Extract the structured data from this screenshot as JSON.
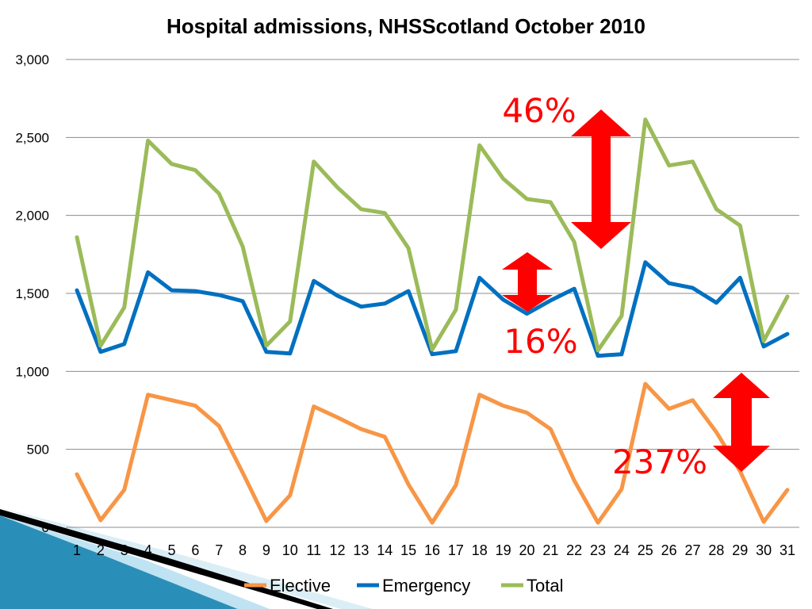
{
  "chart_data": {
    "type": "line",
    "title": "Hospital admissions, NHSScotland October 2010",
    "xlabel": "",
    "ylabel": "",
    "ylim": [
      0,
      3000
    ],
    "yticks": [
      0,
      500,
      1000,
      1500,
      2000,
      2500,
      3000
    ],
    "ytick_labels": [
      "0",
      "500",
      "1,000",
      "1,500",
      "2,000",
      "2,500",
      "3,000"
    ],
    "grid": true,
    "legend_position": "bottom",
    "categories": [
      "1",
      "2",
      "3",
      "4",
      "5",
      "6",
      "7",
      "8",
      "9",
      "10",
      "11",
      "12",
      "13",
      "14",
      "15",
      "16",
      "17",
      "18",
      "19",
      "20",
      "21",
      "22",
      "23",
      "24",
      "25",
      "26",
      "27",
      "28",
      "29",
      "30",
      "31"
    ],
    "series": [
      {
        "name": "Elective",
        "color": "#f79646",
        "values": [
          340,
          45,
          240,
          850,
          815,
          780,
          650,
          350,
          40,
          205,
          775,
          705,
          630,
          580,
          275,
          30,
          270,
          850,
          780,
          735,
          630,
          300,
          30,
          245,
          920,
          760,
          815,
          610,
          360,
          35,
          240
        ]
      },
      {
        "name": "Emergency",
        "color": "#0070c0",
        "values": [
          1520,
          1125,
          1175,
          1635,
          1520,
          1515,
          1490,
          1450,
          1125,
          1115,
          1580,
          1485,
          1415,
          1435,
          1515,
          1110,
          1130,
          1600,
          1460,
          1370,
          1455,
          1530,
          1100,
          1110,
          1700,
          1565,
          1535,
          1440,
          1600,
          1160,
          1240
        ]
      },
      {
        "name": "Total",
        "color": "#9bbb59",
        "values": [
          1860,
          1165,
          1410,
          2480,
          2330,
          2290,
          2140,
          1800,
          1165,
          1320,
          2345,
          2180,
          2040,
          2015,
          1790,
          1140,
          1395,
          2450,
          2235,
          2105,
          2085,
          1830,
          1135,
          1355,
          2615,
          2320,
          2345,
          2040,
          1935,
          1195,
          1480
        ]
      }
    ],
    "annotations": [
      {
        "text": "46%",
        "color": "#ff0000"
      },
      {
        "text": "16%",
        "color": "#ff0000"
      },
      {
        "text": "237%",
        "color": "#ff0000"
      }
    ]
  }
}
